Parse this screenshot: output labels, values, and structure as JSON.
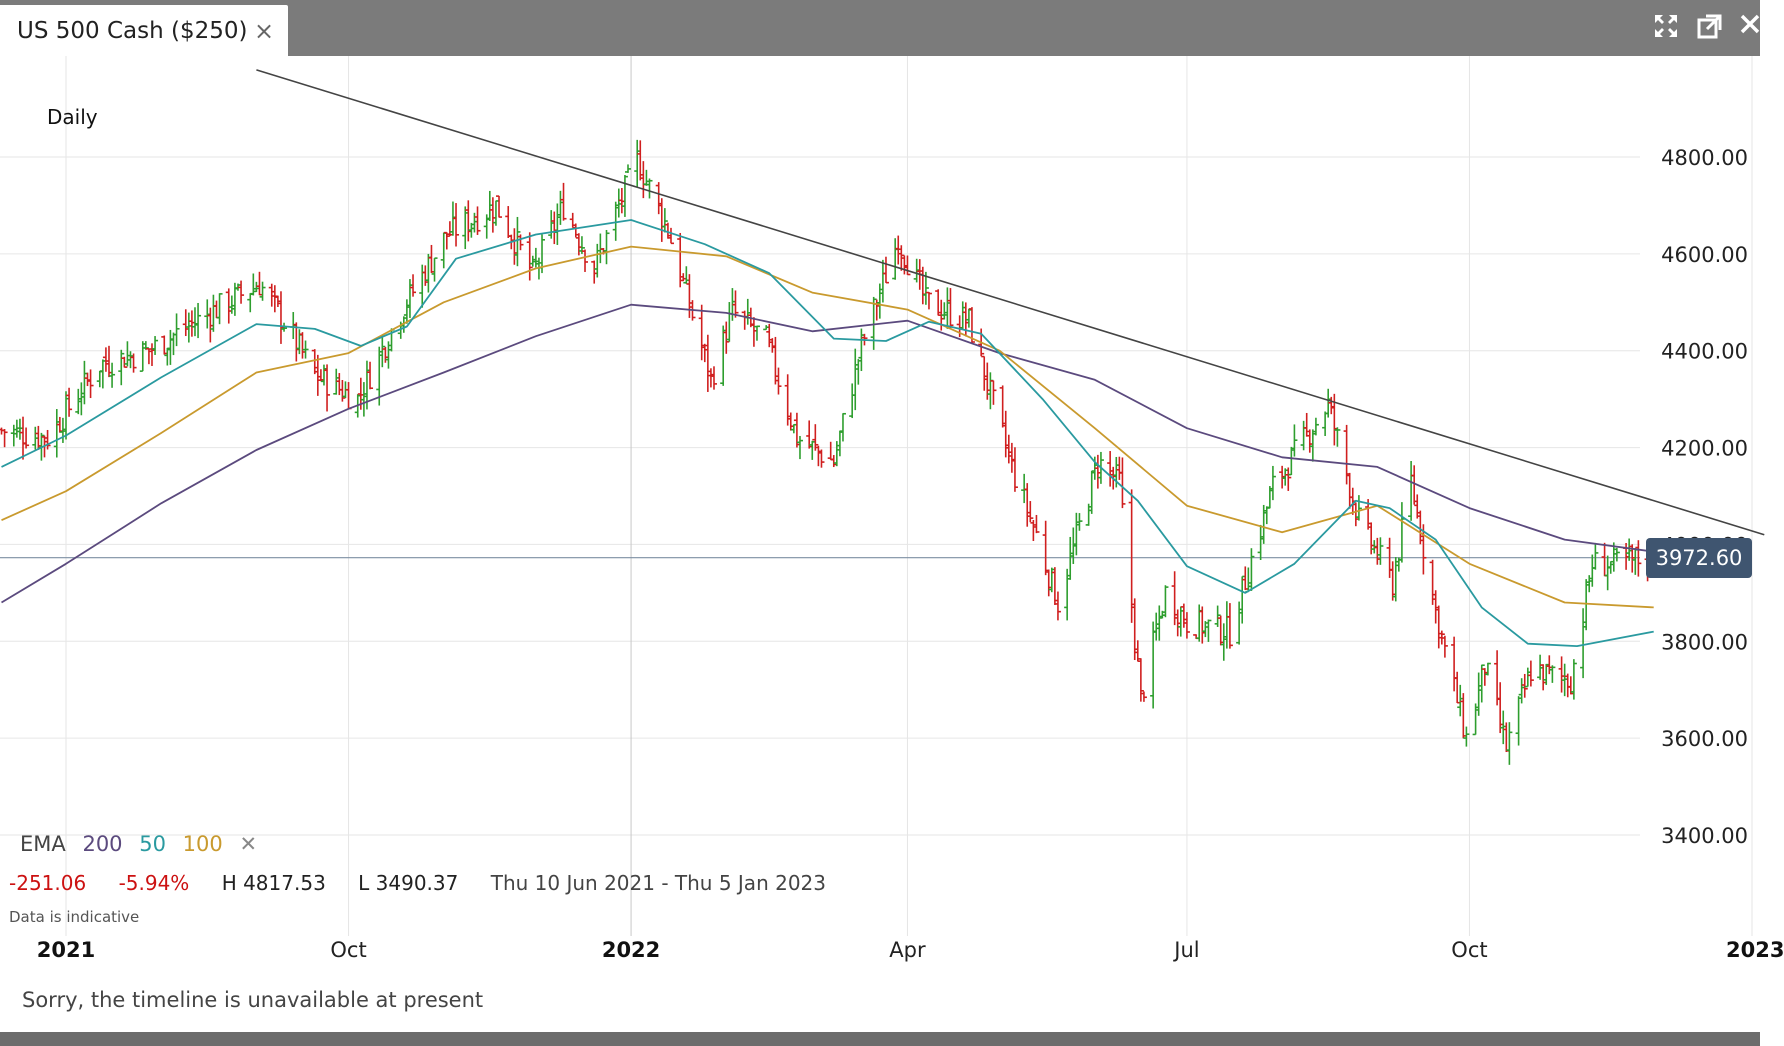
{
  "tab": {
    "title": "US 500 Cash ($250)",
    "close_glyph": "×"
  },
  "window_icons": [
    "fullscreen-icon",
    "popout-icon",
    "close-icon"
  ],
  "chart_data": {
    "type": "candlestick",
    "title": "Daily",
    "symbol": "US 500 Cash ($250)",
    "y_range": [
      3260,
      4980
    ],
    "y_ticks": [
      3400,
      3600,
      3800,
      4000,
      4200,
      4400,
      4600,
      4800
    ],
    "y_tick_labels": [
      "3400.00",
      "3600.00",
      "3800.00",
      "4000.00",
      "4200.00",
      "4400.00",
      "4600.00",
      "4800.00"
    ],
    "x_range": [
      "2021-06-10",
      "2023-01-05"
    ],
    "x_ticks": [
      {
        "date": "2021-07-01",
        "label": "2021",
        "bold": true
      },
      {
        "date": "2021-10-01",
        "label": "Oct",
        "bold": false
      },
      {
        "date": "2022-01-01",
        "label": "2022",
        "bold": true
      },
      {
        "date": "2022-04-01",
        "label": "Apr",
        "bold": false
      },
      {
        "date": "2022-07-01",
        "label": "Jul",
        "bold": false
      },
      {
        "date": "2022-10-01",
        "label": "Oct",
        "bold": false
      },
      {
        "date": "2023-01-01",
        "label": "2023",
        "bold": true
      }
    ],
    "current_price": 3972.6,
    "current_price_label": "3972.60",
    "trendline": [
      {
        "date": "2021-09-01",
        "price": 4980
      },
      {
        "date": "2023-01-05",
        "price": 4020
      }
    ],
    "close_anchors": [
      [
        "2021-06-10",
        4236
      ],
      [
        "2021-06-25",
        4220
      ],
      [
        "2021-07-12",
        4372
      ],
      [
        "2021-07-28",
        4400
      ],
      [
        "2021-08-16",
        4475
      ],
      [
        "2021-09-02",
        4538
      ],
      [
        "2021-09-10",
        4460
      ],
      [
        "2021-09-20",
        4350
      ],
      [
        "2021-10-04",
        4300
      ],
      [
        "2021-10-18",
        4480
      ],
      [
        "2021-11-02",
        4640
      ],
      [
        "2021-11-18",
        4700
      ],
      [
        "2021-11-30",
        4560
      ],
      [
        "2021-12-10",
        4700
      ],
      [
        "2021-12-20",
        4570
      ],
      [
        "2022-01-03",
        4795
      ],
      [
        "2022-01-13",
        4650
      ],
      [
        "2022-01-27",
        4340
      ],
      [
        "2022-02-03",
        4480
      ],
      [
        "2022-02-14",
        4420
      ],
      [
        "2022-02-24",
        4220
      ],
      [
        "2022-03-08",
        4170
      ],
      [
        "2022-03-17",
        4410
      ],
      [
        "2022-03-29",
        4630
      ],
      [
        "2022-04-07",
        4500
      ],
      [
        "2022-04-21",
        4460
      ],
      [
        "2022-05-06",
        4140
      ],
      [
        "2022-05-13",
        4020
      ],
      [
        "2022-05-20",
        3880
      ],
      [
        "2022-06-02",
        4170
      ],
      [
        "2022-06-09",
        4130
      ],
      [
        "2022-06-16",
        3680
      ],
      [
        "2022-06-24",
        3900
      ],
      [
        "2022-07-01",
        3840
      ],
      [
        "2022-07-15",
        3820
      ],
      [
        "2022-07-29",
        4120
      ],
      [
        "2022-08-16",
        4290
      ],
      [
        "2022-08-26",
        4050
      ],
      [
        "2022-09-06",
        3920
      ],
      [
        "2022-09-12",
        4130
      ],
      [
        "2022-09-20",
        3860
      ],
      [
        "2022-09-30",
        3600
      ],
      [
        "2022-10-06",
        3750
      ],
      [
        "2022-10-13",
        3580
      ],
      [
        "2022-10-21",
        3740
      ],
      [
        "2022-11-03",
        3720
      ],
      [
        "2022-11-10",
        3960
      ],
      [
        "2022-11-18",
        3960
      ],
      [
        "2022-11-30",
        3975
      ]
    ],
    "ema_200": [
      [
        "2021-06-10",
        3880
      ],
      [
        "2021-07-01",
        3960
      ],
      [
        "2021-08-01",
        4085
      ],
      [
        "2021-09-01",
        4195
      ],
      [
        "2021-10-01",
        4280
      ],
      [
        "2021-11-01",
        4355
      ],
      [
        "2021-12-01",
        4430
      ],
      [
        "2022-01-01",
        4495
      ],
      [
        "2022-02-01",
        4478
      ],
      [
        "2022-03-01",
        4440
      ],
      [
        "2022-04-01",
        4462
      ],
      [
        "2022-05-01",
        4395
      ],
      [
        "2022-06-01",
        4340
      ],
      [
        "2022-07-01",
        4240
      ],
      [
        "2022-08-01",
        4180
      ],
      [
        "2022-09-01",
        4160
      ],
      [
        "2022-10-01",
        4075
      ],
      [
        "2022-11-01",
        4010
      ],
      [
        "2022-11-30",
        3985
      ]
    ],
    "ema_50": [
      [
        "2021-06-10",
        4160
      ],
      [
        "2021-07-01",
        4225
      ],
      [
        "2021-08-01",
        4345
      ],
      [
        "2021-09-01",
        4455
      ],
      [
        "2021-09-20",
        4445
      ],
      [
        "2021-10-05",
        4410
      ],
      [
        "2021-10-20",
        4450
      ],
      [
        "2021-11-05",
        4590
      ],
      [
        "2021-12-01",
        4640
      ],
      [
        "2022-01-01",
        4670
      ],
      [
        "2022-01-25",
        4620
      ],
      [
        "2022-02-15",
        4560
      ],
      [
        "2022-03-08",
        4425
      ],
      [
        "2022-03-25",
        4420
      ],
      [
        "2022-04-08",
        4460
      ],
      [
        "2022-04-25",
        4435
      ],
      [
        "2022-05-15",
        4300
      ],
      [
        "2022-06-01",
        4170
      ],
      [
        "2022-06-15",
        4090
      ],
      [
        "2022-07-01",
        3955
      ],
      [
        "2022-07-20",
        3900
      ],
      [
        "2022-08-05",
        3960
      ],
      [
        "2022-08-25",
        4090
      ],
      [
        "2022-09-05",
        4075
      ],
      [
        "2022-09-20",
        4010
      ],
      [
        "2022-10-05",
        3870
      ],
      [
        "2022-10-20",
        3795
      ],
      [
        "2022-11-05",
        3790
      ],
      [
        "2022-11-30",
        3820
      ]
    ],
    "ema_100": [
      [
        "2021-06-10",
        4050
      ],
      [
        "2021-07-01",
        4110
      ],
      [
        "2021-08-01",
        4230
      ],
      [
        "2021-09-01",
        4355
      ],
      [
        "2021-10-01",
        4395
      ],
      [
        "2021-11-01",
        4500
      ],
      [
        "2021-12-01",
        4570
      ],
      [
        "2022-01-01",
        4615
      ],
      [
        "2022-02-01",
        4595
      ],
      [
        "2022-03-01",
        4520
      ],
      [
        "2022-04-01",
        4485
      ],
      [
        "2022-05-01",
        4400
      ],
      [
        "2022-06-01",
        4240
      ],
      [
        "2022-07-01",
        4080
      ],
      [
        "2022-08-01",
        4025
      ],
      [
        "2022-09-01",
        4080
      ],
      [
        "2022-10-01",
        3960
      ],
      [
        "2022-11-01",
        3880
      ],
      [
        "2022-11-30",
        3870
      ]
    ]
  },
  "legend": {
    "label": "EMA",
    "items": [
      {
        "text": "200",
        "color": "#5b4a7e"
      },
      {
        "text": "50",
        "color": "#2a9aa0"
      },
      {
        "text": "100",
        "color": "#c99a2e"
      }
    ],
    "remove_glyph": "✕"
  },
  "stats": {
    "change": "-251.06",
    "change_pct": "-5.94%",
    "high": "H 4817.53",
    "low": "L 3490.37",
    "range": "Thu 10 Jun 2021 - Thu 5 Jan 2023"
  },
  "data_note": "Data is indicative",
  "timeline_message": "Sorry, the timeline is unavailable at present",
  "colors": {
    "up": "#2e9e2e",
    "down": "#d01f1f",
    "trendline": "#444444",
    "price_line": "#7d8fa3",
    "price_label_bg": "#3f5570"
  }
}
